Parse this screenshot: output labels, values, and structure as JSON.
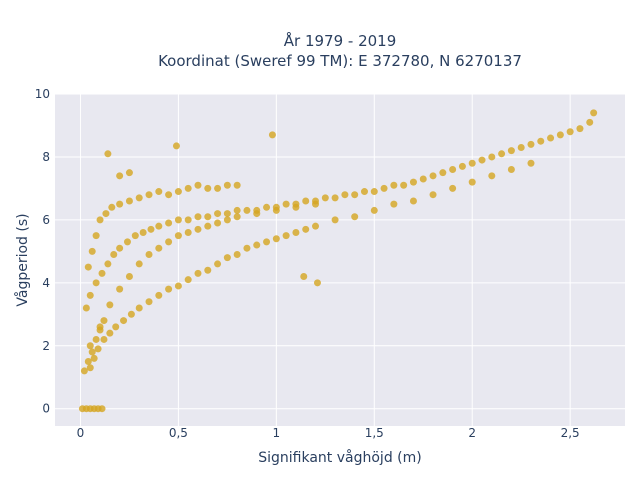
{
  "chart_data": {
    "type": "scatter",
    "title_line1": "År 1979 - 2019",
    "title_line2": "Koordinat (Sweref 99 TM): E 372780, N 6270137",
    "xlabel": "Signifikant våghöjd (m)",
    "ylabel": "Vågperiod (s)",
    "xlim": [
      -0.13,
      2.78
    ],
    "ylim": [
      -0.55,
      10.0
    ],
    "x_ticks": [
      0,
      0.5,
      1,
      1.5,
      2,
      2.5
    ],
    "x_tick_labels": [
      "0",
      "0,5",
      "1",
      "1,5",
      "2",
      "2,5"
    ],
    "y_ticks": [
      0,
      2,
      4,
      6,
      8,
      10
    ],
    "y_tick_labels": [
      "0",
      "2",
      "4",
      "6",
      "8",
      "10"
    ],
    "grid": true,
    "marker_color": "#D4A521",
    "background_color": "#E8E8F0",
    "series": [
      {
        "x": [
          0.01,
          0.03,
          0.05,
          0.07,
          0.09,
          0.11,
          0.02,
          0.04,
          0.06,
          0.08,
          0.1,
          0.12,
          0.03,
          0.05,
          0.08,
          0.11,
          0.14,
          0.17,
          0.2,
          0.24,
          0.28,
          0.32,
          0.36,
          0.4,
          0.45,
          0.5,
          0.55,
          0.6,
          0.65,
          0.7,
          0.75,
          0.8,
          0.85,
          0.9,
          0.95,
          1.0,
          1.05,
          1.1,
          1.15,
          1.2,
          1.25,
          1.3,
          1.35,
          1.4,
          1.45,
          1.5,
          1.55,
          1.6,
          1.65,
          1.7,
          1.75,
          1.8,
          1.85,
          1.9,
          1.95,
          2.0,
          2.05,
          2.1,
          2.15,
          2.2,
          2.25,
          2.3,
          2.35,
          2.4,
          2.45,
          2.5,
          2.55,
          2.6,
          2.62,
          0.05,
          0.07,
          0.09,
          0.12,
          0.15,
          0.18,
          0.22,
          0.26,
          0.3,
          0.35,
          0.4,
          0.45,
          0.5,
          0.55,
          0.6,
          0.65,
          0.7,
          0.75,
          0.8,
          0.85,
          0.9,
          0.95,
          1.0,
          1.05,
          1.1,
          1.15,
          1.2,
          1.3,
          1.4,
          1.5,
          1.6,
          1.7,
          1.8,
          1.9,
          2.0,
          2.1,
          2.2,
          2.3,
          0.04,
          0.06,
          0.08,
          0.1,
          0.13,
          0.16,
          0.2,
          0.25,
          0.3,
          0.35,
          0.4,
          0.45,
          0.5,
          0.55,
          0.6,
          0.65,
          0.7,
          0.75,
          0.8,
          0.05,
          0.1,
          0.15,
          0.2,
          0.25,
          0.3,
          0.35,
          0.4,
          0.45,
          0.5,
          0.55,
          0.6,
          0.65,
          0.7,
          0.75,
          0.8,
          0.9,
          1.0,
          1.1,
          1.2,
          0.14,
          0.49,
          0.98,
          1.21,
          1.14,
          0.2,
          0.25
        ],
        "y": [
          0.0,
          0.0,
          0.0,
          0.0,
          0.0,
          0.0,
          1.2,
          1.5,
          1.8,
          2.2,
          2.5,
          2.8,
          3.2,
          3.6,
          4.0,
          4.3,
          4.6,
          4.9,
          5.1,
          5.3,
          5.5,
          5.6,
          5.7,
          5.8,
          5.9,
          6.0,
          6.0,
          6.1,
          6.1,
          6.2,
          6.2,
          6.3,
          6.3,
          6.3,
          6.4,
          6.4,
          6.5,
          6.5,
          6.6,
          6.6,
          6.7,
          6.7,
          6.8,
          6.8,
          6.9,
          6.9,
          7.0,
          7.1,
          7.1,
          7.2,
          7.3,
          7.4,
          7.5,
          7.6,
          7.7,
          7.8,
          7.9,
          8.0,
          8.1,
          8.2,
          8.3,
          8.4,
          8.5,
          8.6,
          8.7,
          8.8,
          8.9,
          9.1,
          9.4,
          1.3,
          1.6,
          1.9,
          2.2,
          2.4,
          2.6,
          2.8,
          3.0,
          3.2,
          3.4,
          3.6,
          3.8,
          3.9,
          4.1,
          4.3,
          4.4,
          4.6,
          4.8,
          4.9,
          5.1,
          5.2,
          5.3,
          5.4,
          5.5,
          5.6,
          5.7,
          5.8,
          6.0,
          6.1,
          6.3,
          6.5,
          6.6,
          6.8,
          7.0,
          7.2,
          7.4,
          7.6,
          7.8,
          4.5,
          5.0,
          5.5,
          6.0,
          6.2,
          6.4,
          6.5,
          6.6,
          6.7,
          6.8,
          6.9,
          6.8,
          6.9,
          7.0,
          7.1,
          7.0,
          7.0,
          7.1,
          7.1,
          2.0,
          2.6,
          3.3,
          3.8,
          4.2,
          4.6,
          4.9,
          5.1,
          5.3,
          5.5,
          5.6,
          5.7,
          5.8,
          5.9,
          6.0,
          6.1,
          6.2,
          6.3,
          6.4,
          6.5,
          8.1,
          8.35,
          8.7,
          4.0,
          4.2,
          7.4,
          7.5
        ]
      }
    ]
  }
}
